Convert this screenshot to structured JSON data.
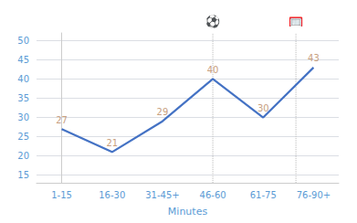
{
  "chart_data": {
    "type": "line",
    "categories": [
      "1-15",
      "16-30",
      "31-45+",
      "46-60",
      "61-75",
      "76-90+"
    ],
    "values": [
      27,
      21,
      29,
      40,
      30,
      43
    ],
    "color": "#4472c4",
    "xlabel": "Minutes",
    "ylim": [
      13,
      52
    ],
    "yticks": [
      15,
      20,
      25,
      30,
      35,
      40,
      45,
      50
    ],
    "grid": true,
    "data_labels": true,
    "label_color": "#c8a080",
    "tick_color": "#5b9bd5",
    "vlines": {
      "x": [
        3,
        4.65
      ],
      "color": "#bbbbbb",
      "line_style": "dotted"
    },
    "annotations": [
      {
        "text": "⚽",
        "x": 3
      },
      {
        "text": "🥅",
        "x": 4.65
      }
    ]
  }
}
